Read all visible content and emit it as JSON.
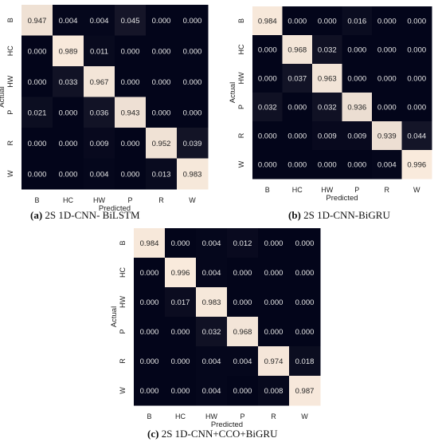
{
  "chart_data": [
    {
      "type": "heatmap",
      "caption_label": "(a)",
      "caption_text": "2S 1D-CNN- BiLSTM",
      "xlabel": "Predicted",
      "ylabel": "Actual",
      "x_categories": [
        "B",
        "HC",
        "HW",
        "P",
        "R",
        "W"
      ],
      "y_categories": [
        "B",
        "HC",
        "HW",
        "P",
        "R",
        "W"
      ],
      "values": [
        [
          "0.947",
          "0.004",
          "0.004",
          "0.045",
          "0.000",
          "0.000"
        ],
        [
          "0.000",
          "0.989",
          "0.011",
          "0.000",
          "0.000",
          "0.000"
        ],
        [
          "0.000",
          "0.033",
          "0.967",
          "0.000",
          "0.000",
          "0.000"
        ],
        [
          "0.021",
          "0.000",
          "0.036",
          "0.943",
          "0.000",
          "0.000"
        ],
        [
          "0.000",
          "0.000",
          "0.009",
          "0.000",
          "0.952",
          "0.039"
        ],
        [
          "0.000",
          "0.000",
          "0.004",
          "0.000",
          "0.013",
          "0.983"
        ]
      ],
      "colors": {
        "low": "#03051a",
        "high": "#faebdd"
      }
    },
    {
      "type": "heatmap",
      "caption_label": "(b)",
      "caption_text": "2S 1D-CNN-BiGRU",
      "xlabel": "Predicted",
      "ylabel": "Actual",
      "x_categories": [
        "B",
        "HC",
        "HW",
        "P",
        "R",
        "W"
      ],
      "y_categories": [
        "B",
        "HC",
        "HW",
        "P",
        "R",
        "W"
      ],
      "values": [
        [
          "0.984",
          "0.000",
          "0.000",
          "0.016",
          "0.000",
          "0.000"
        ],
        [
          "0.000",
          "0.968",
          "0.032",
          "0.000",
          "0.000",
          "0.000"
        ],
        [
          "0.000",
          "0.037",
          "0.963",
          "0.000",
          "0.000",
          "0.000"
        ],
        [
          "0.032",
          "0.000",
          "0.032",
          "0.936",
          "0.000",
          "0.000"
        ],
        [
          "0.000",
          "0.000",
          "0.009",
          "0.009",
          "0.939",
          "0.044"
        ],
        [
          "0.000",
          "0.000",
          "0.000",
          "0.000",
          "0.004",
          "0.996"
        ]
      ],
      "colors": {
        "low": "#03051a",
        "high": "#faebdd"
      }
    },
    {
      "type": "heatmap",
      "caption_label": "(c)",
      "caption_text": "2S 1D-CNN+CCO+BiGRU",
      "xlabel": "Predicted",
      "ylabel": "Actual",
      "x_categories": [
        "B",
        "HC",
        "HW",
        "P",
        "R",
        "W"
      ],
      "y_categories": [
        "B",
        "HC",
        "HW",
        "P",
        "R",
        "W"
      ],
      "values": [
        [
          "0.984",
          "0.000",
          "0.004",
          "0.012",
          "0.000",
          "0.000"
        ],
        [
          "0.000",
          "0.996",
          "0.004",
          "0.000",
          "0.000",
          "0.000"
        ],
        [
          "0.000",
          "0.017",
          "0.983",
          "0.000",
          "0.000",
          "0.000"
        ],
        [
          "0.000",
          "0.000",
          "0.032",
          "0.968",
          "0.000",
          "0.000"
        ],
        [
          "0.000",
          "0.000",
          "0.004",
          "0.004",
          "0.974",
          "0.018"
        ],
        [
          "0.000",
          "0.000",
          "0.004",
          "0.000",
          "0.008",
          "0.987"
        ]
      ],
      "colors": {
        "low": "#03051a",
        "high": "#faebdd"
      }
    }
  ]
}
